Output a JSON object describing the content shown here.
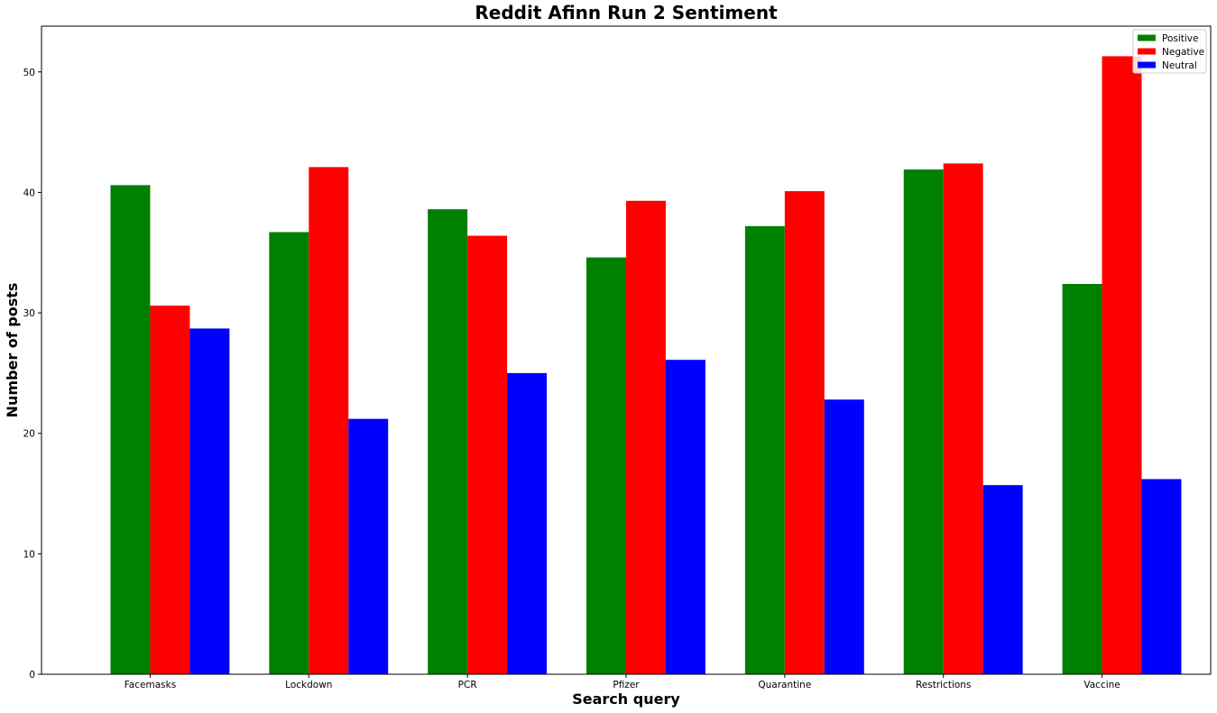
{
  "chart_data": {
    "type": "bar",
    "title": "Reddit Afinn Run 2 Sentiment",
    "xlabel": "Search query",
    "ylabel": "Number of posts",
    "categories": [
      "Facemasks",
      "Lockdown",
      "PCR",
      "Pfizer",
      "Quarantine",
      "Restrictions",
      "Vaccine"
    ],
    "series": [
      {
        "name": "Positive",
        "color": "#008000",
        "values": [
          40.6,
          36.7,
          38.6,
          34.6,
          37.2,
          41.9,
          32.4
        ]
      },
      {
        "name": "Negative",
        "color": "#ff0000",
        "values": [
          30.6,
          42.1,
          36.4,
          39.3,
          40.1,
          42.4,
          51.3
        ]
      },
      {
        "name": "Neutral",
        "color": "#0000ff",
        "values": [
          28.7,
          21.2,
          25.0,
          26.1,
          22.8,
          15.7,
          16.2
        ]
      }
    ],
    "ylim": [
      0,
      53.8
    ],
    "yticks": [
      0,
      10,
      20,
      30,
      40,
      50
    ],
    "grid": false,
    "legend_position": "top-right"
  }
}
